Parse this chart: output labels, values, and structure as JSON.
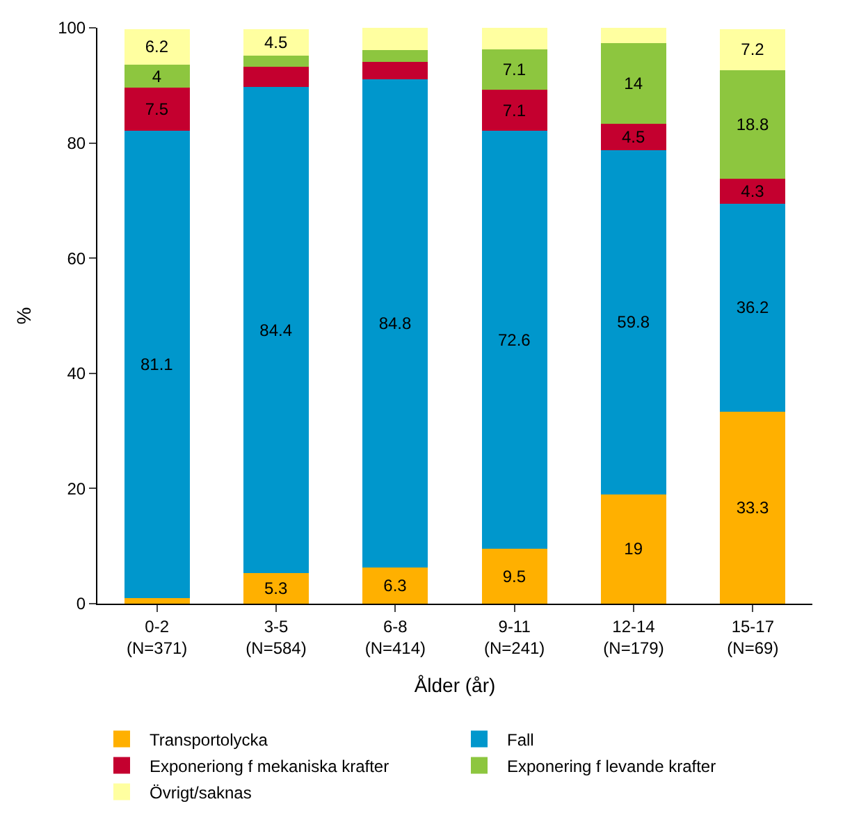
{
  "chart_data": {
    "type": "bar",
    "stacked": true,
    "xlabel": "Ålder (år)",
    "ylabel": "%",
    "categories": [
      "0-2\n(N=371)",
      "3-5\n(N=584)",
      "6-8\n(N=414)",
      "9-11\n(N=241)",
      "12-14\n(N=179)",
      "15-17\n(N=69)"
    ],
    "series": [
      {
        "name": "Transportolycka",
        "color": "#ffb000",
        "values": [
          1,
          5.3,
          6.3,
          9.5,
          19,
          33.3
        ],
        "value_labels": [
          null,
          "5.3",
          "6.3",
          "9.5",
          "19",
          "33.3"
        ]
      },
      {
        "name": "Fall",
        "color": "#0097cc",
        "values": [
          81.1,
          84.4,
          84.8,
          72.6,
          59.8,
          36.2
        ],
        "value_labels": [
          "81.1",
          "84.4",
          "84.8",
          "72.6",
          "59.8",
          "36.2"
        ]
      },
      {
        "name": "Exponeriong f mekaniska krafter",
        "color": "#c4002f",
        "values": [
          7.5,
          3.5,
          3,
          7.1,
          4.5,
          4.3
        ],
        "value_labels": [
          "7.5",
          null,
          null,
          "7.1",
          "4.5",
          "4.3"
        ]
      },
      {
        "name": "Exponering f levande krafter",
        "color": "#8dc63f",
        "values": [
          4,
          2,
          2,
          7.1,
          14,
          18.8
        ],
        "value_labels": [
          "4",
          null,
          null,
          "7.1",
          "14",
          "18.8"
        ]
      },
      {
        "name": "Övrigt/saknas",
        "color": "#ffffa0",
        "values": [
          6.2,
          4.5,
          4,
          3.7,
          2.7,
          7.2
        ],
        "value_labels": [
          "6.2",
          "4.5",
          null,
          null,
          null,
          "7.2"
        ]
      }
    ],
    "ylim": [
      0,
      100
    ],
    "yticks": [
      0,
      20,
      40,
      60,
      80,
      100
    ],
    "legend": "bottom"
  }
}
